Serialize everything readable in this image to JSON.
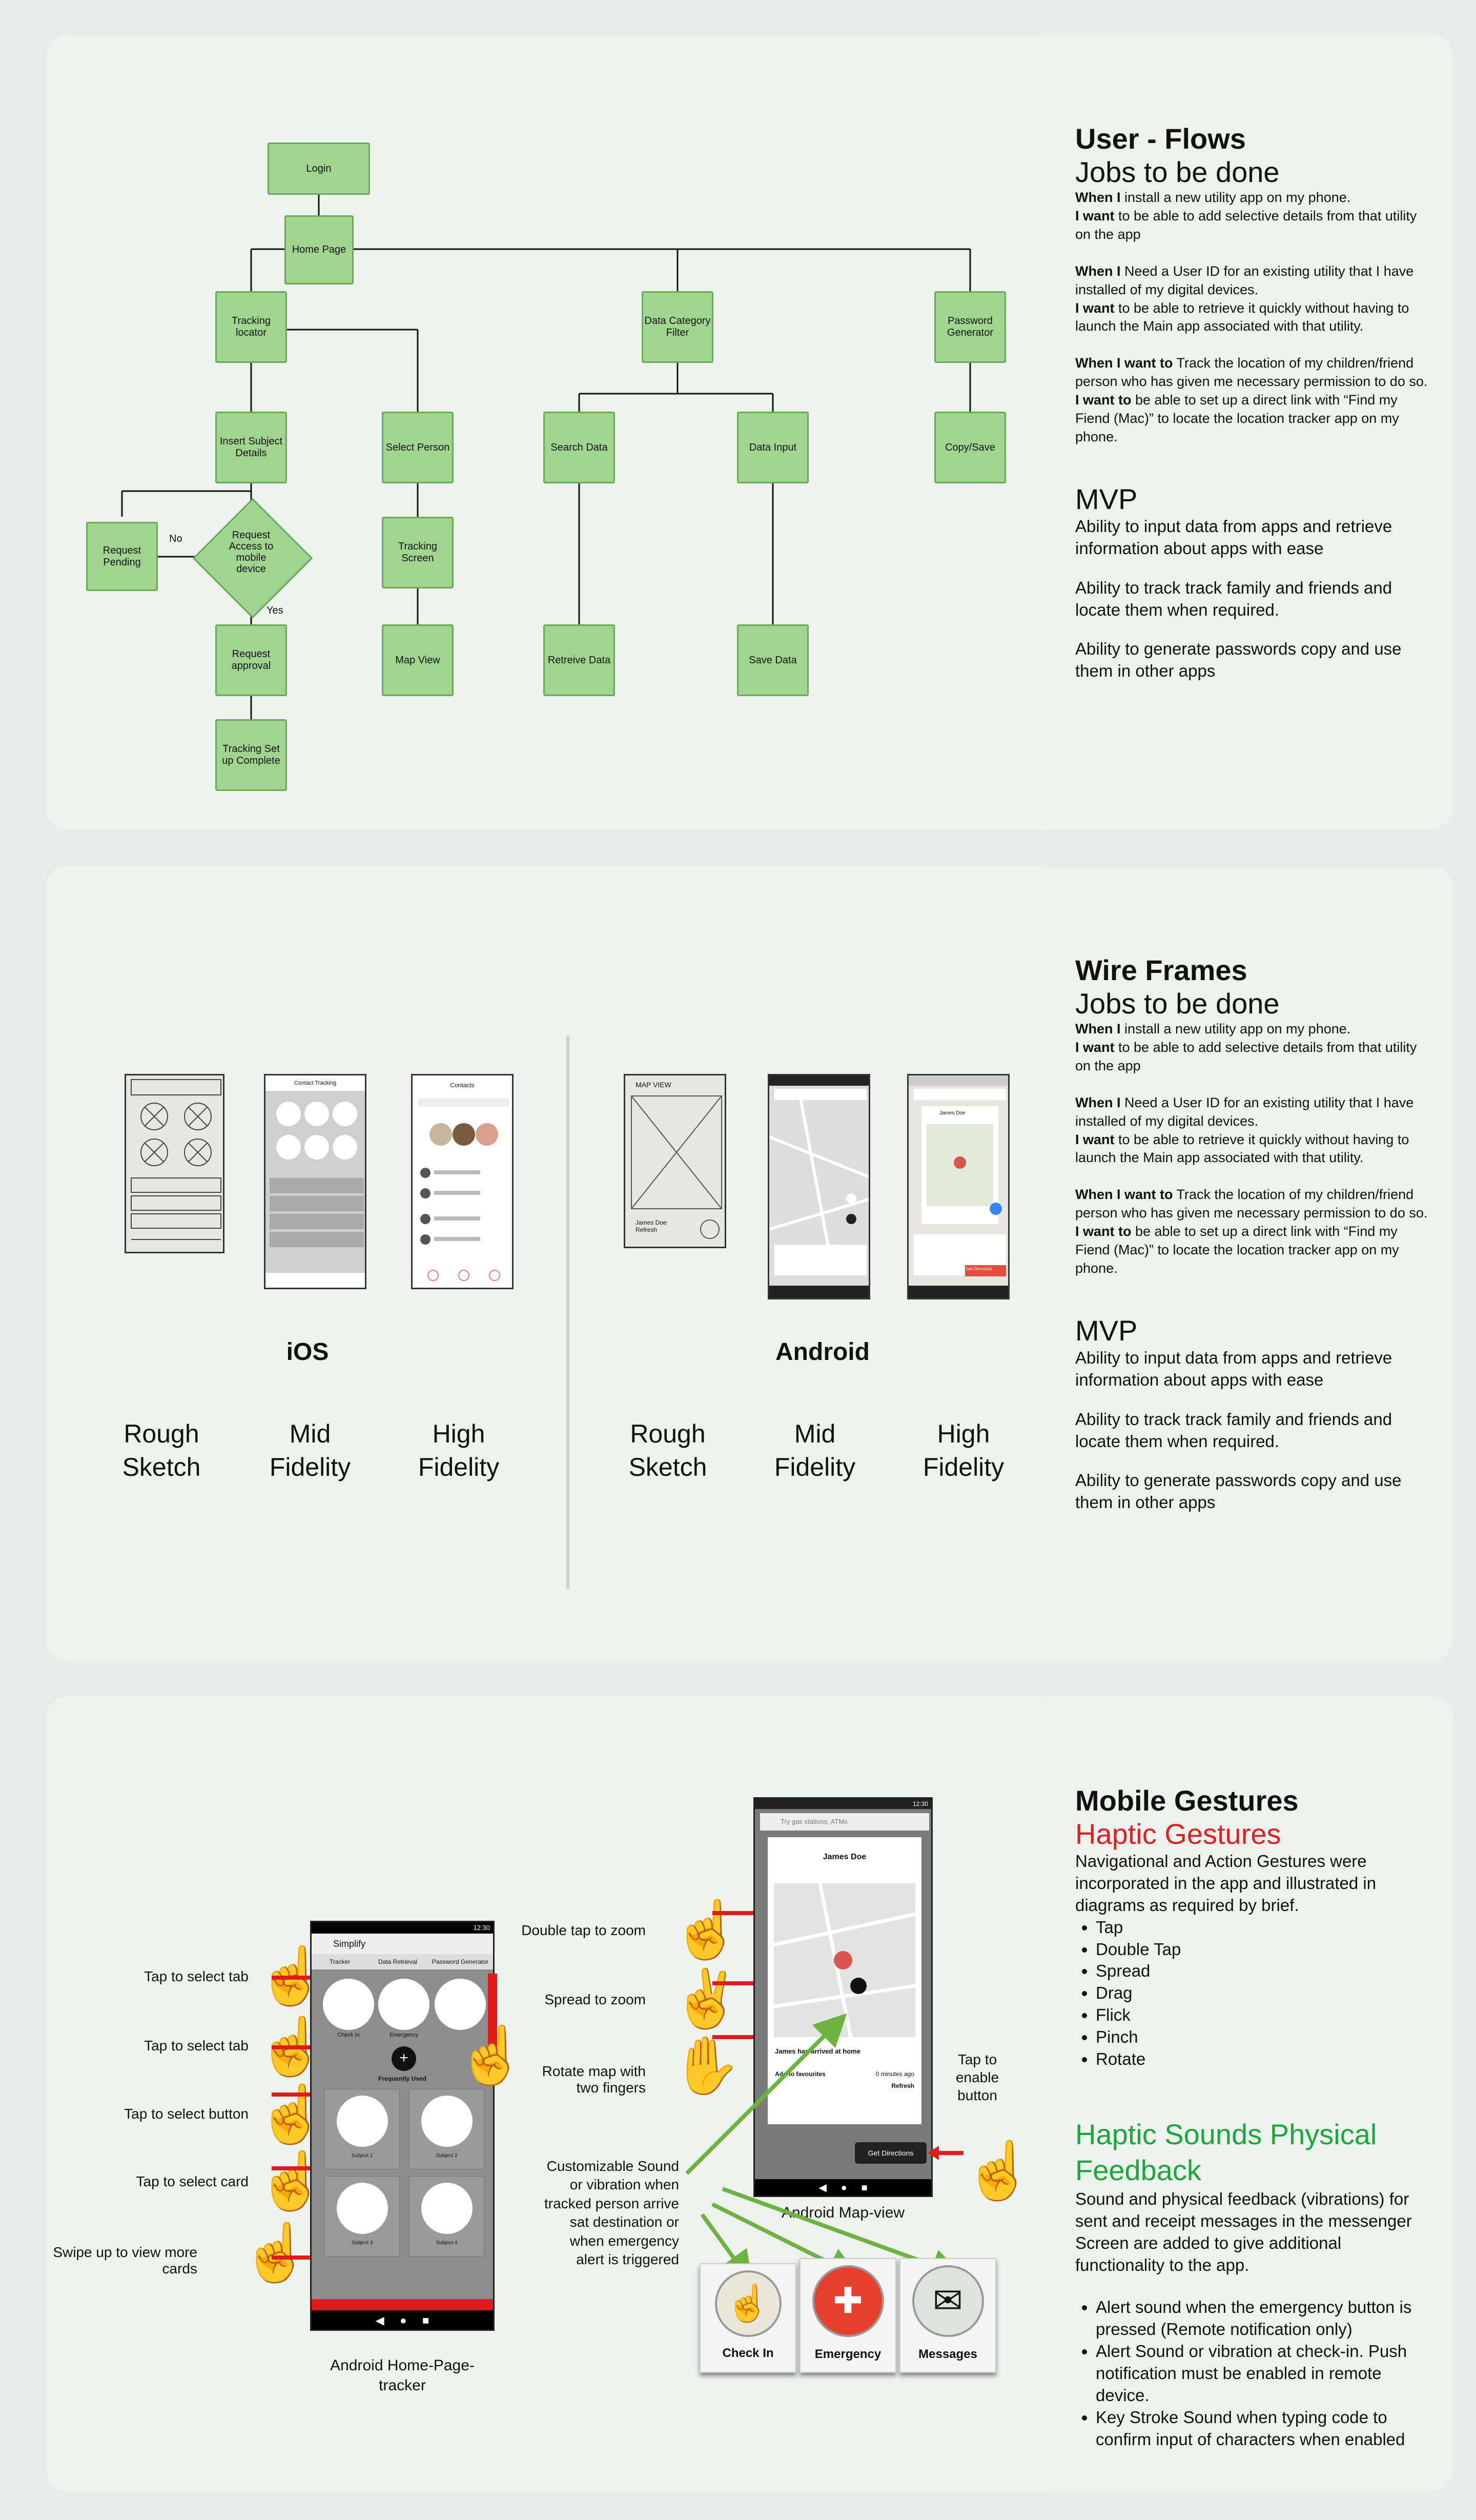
{
  "panel1": {
    "heading": "User - Flows",
    "subheading": "Jobs to be done",
    "flow": {
      "login": "Login",
      "home": "Home Page",
      "tracking_locator": "Tracking locator",
      "data_category": "Data Category Filter",
      "password_gen": "Password Generator",
      "insert_subject": "Insert Subject Details",
      "select_person": "Select Person",
      "search_data": "Search Data",
      "data_input": "Data Input",
      "copy_save": "Copy/Save",
      "request_access": "Request Access to mobile device",
      "request_pending": "Request Pending",
      "tracking_screen": "Tracking Screen",
      "request_approval": "Request approval",
      "map_view": "Map View",
      "retrieve_data": "Retreive Data",
      "save_data": "Save Data",
      "tracking_complete": "Tracking Set up Complete",
      "no": "No",
      "yes": "Yes"
    },
    "jobs": [
      {
        "b1": "When I",
        "t1": " install a new utility app on my phone.",
        "b2": "I want",
        "t2": " to be able to add selective details from that utility on the app"
      },
      {
        "b1": "When I",
        "t1": " Need a User ID for an existing utility that I have installed of my digital devices.",
        "b2": "I want",
        "t2": " to be able to retrieve it quickly without having to launch the Main app associated with that utility."
      },
      {
        "b1": "When I want to",
        "t1": " Track the location of my children/friend person who has given me necessary permission to do so.",
        "b2": "I want to",
        "t2": " be able to set up a direct link with “Find my Fiend (Mac)” to locate the location tracker app on my phone."
      }
    ],
    "mvp_title": "MVP",
    "mvp": [
      "Ability to input data from apps and retrieve information  about apps with ease",
      "Ability to track track family and friends and locate them when required.",
      "Ability to generate passwords copy and use them in other apps"
    ]
  },
  "panel2": {
    "heading": "Wire Frames",
    "subheading": "Jobs to be done",
    "ios": "iOS",
    "android": "Android",
    "levels": [
      "Rough Sketch",
      "Mid Fidelity",
      "High Fidelity"
    ],
    "ios_mid_title": "Contact Tracking",
    "ios_hi_title": "Contacts",
    "android_sketch": "MAP VIEW",
    "android_sketch_note": "James Doe Refresh",
    "android_hi_name": "James Doe",
    "android_hi_button": "Get Directions"
  },
  "panel3": {
    "heading": "Mobile Gestures",
    "haptic_title": "Haptic Gestures",
    "haptic_intro": "Navigational and Action Gestures  were incorporated in the app and illustrated in diagrams as required by brief.",
    "gestures": [
      "Tap",
      "Double Tap",
      "Spread",
      "Drag",
      "Flick",
      "Pinch",
      "Rotate"
    ],
    "sounds_title": "Haptic Sounds  Physical Feedback",
    "sounds_intro": "Sound and physical feedback (vibrations) for sent and receipt messages in the messenger Screen are added to give additional functionality to the app.",
    "sounds_list": [
      "Alert sound when the emergency button is pressed (Remote notification only)",
      "Alert Sound  or vibration at check-in. Push notification must be enabled in remote device.",
      "Key Stroke Sound  when typing code to confirm input of characters when enabled"
    ],
    "left_labels": [
      "Tap to select tab",
      "Tap to select tab",
      "Tap to select button",
      "Tap to select card",
      "Swipe up to view more cards"
    ],
    "home_app": {
      "status": "12:30",
      "title": "Simplify",
      "tabs": [
        "Tracker",
        "Data Retrieval",
        "Password Generator"
      ],
      "circles": [
        "Check In",
        "Emergency",
        ""
      ],
      "freq": "Frequently Used",
      "cards": [
        "Subject 1",
        "Subject 2",
        "Subject 3",
        "Subject 4"
      ]
    },
    "home_caption": "Android Home-Page-tracker",
    "map_labels": [
      "Double tap to zoom",
      "Spread to zoom",
      "Rotate map with two fingers"
    ],
    "custom_label": "Customizable Sound or vibration when tracked person arrive sat destination or when emergency alert is triggered",
    "map_app": {
      "status": "12:30",
      "search": "Try gas stations, ATMs",
      "name": "James Doe",
      "arrived": "James has arrived at home",
      "fav": "Add to favourites",
      "ago": "0 minutes ago",
      "refresh": "Refresh",
      "button": "Get Directions"
    },
    "map_caption": "Android Map-view",
    "tap_enable": "Tap to enable button",
    "buttons": [
      "Check In",
      "Emergency",
      "Messages"
    ]
  },
  "colors": {
    "green_node": "#9fd58f",
    "haptic_red": "#e02020",
    "haptic_green": "#1aa83a",
    "arrow_red": "#e01b1b",
    "arrow_green": "#6db33f"
  }
}
